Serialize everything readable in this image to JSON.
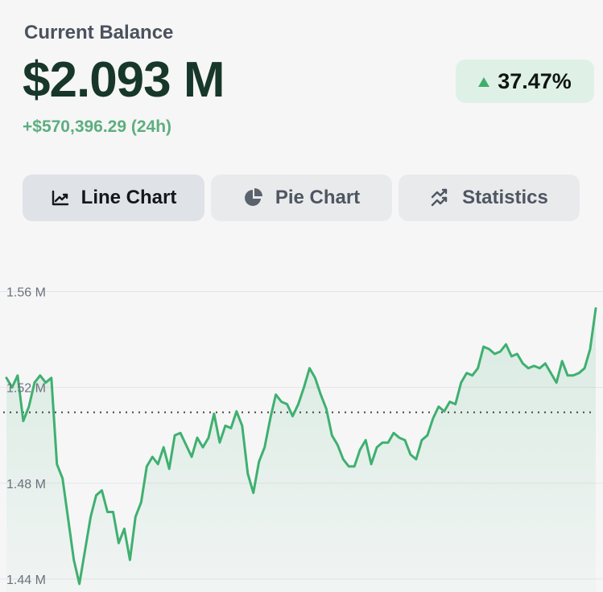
{
  "balance": {
    "label": "Current Balance",
    "value": "$2.093 M",
    "change_24h": "+$570,396.29 (24h)"
  },
  "performance": {
    "percent": "37.47%",
    "direction": "up",
    "color": "#3fae6b"
  },
  "tabs": [
    {
      "label": "Line Chart",
      "icon": "line-chart-icon",
      "active": true
    },
    {
      "label": "Pie Chart",
      "icon": "pie-chart-icon",
      "active": false
    },
    {
      "label": "Statistics",
      "icon": "statistics-icon",
      "active": false
    }
  ],
  "colors": {
    "accent_green": "#3fae6b",
    "line": "#3fb070",
    "balance_text": "#17372a",
    "change_text": "#5dae7f"
  },
  "chart_data": {
    "type": "area",
    "y_axis": {
      "ticks": [
        1.56,
        1.52,
        1.48,
        1.44
      ],
      "tick_labels": [
        "1.56 M",
        "1.52 M",
        "1.48 M",
        "1.44 M"
      ],
      "ylim": [
        1.4346,
        1.581
      ]
    },
    "reference_line": 1.5096,
    "grid": true,
    "series": [
      {
        "values": [
          1.524,
          1.52,
          1.525,
          1.506,
          1.512,
          1.522,
          1.525,
          1.522,
          1.524,
          1.488,
          1.482,
          1.465,
          1.448,
          1.438,
          1.452,
          1.466,
          1.475,
          1.477,
          1.468,
          1.468,
          1.455,
          1.461,
          1.448,
          1.466,
          1.472,
          1.487,
          1.491,
          1.488,
          1.495,
          1.486,
          1.5,
          1.501,
          1.496,
          1.491,
          1.499,
          1.495,
          1.499,
          1.509,
          1.497,
          1.504,
          1.503,
          1.51,
          1.504,
          1.484,
          1.476,
          1.489,
          1.495,
          1.507,
          1.517,
          1.514,
          1.513,
          1.508,
          1.513,
          1.52,
          1.528,
          1.524,
          1.517,
          1.511,
          1.5,
          1.496,
          1.49,
          1.487,
          1.487,
          1.494,
          1.498,
          1.488,
          1.495,
          1.497,
          1.497,
          1.501,
          1.499,
          1.498,
          1.492,
          1.49,
          1.498,
          1.5,
          1.507,
          1.512,
          1.51,
          1.514,
          1.513,
          1.522,
          1.526,
          1.525,
          1.528,
          1.537,
          1.536,
          1.534,
          1.535,
          1.538,
          1.533,
          1.534,
          1.53,
          1.528,
          1.529,
          1.528,
          1.53,
          1.526,
          1.522,
          1.531,
          1.525,
          1.525,
          1.526,
          1.528,
          1.536,
          1.553
        ],
        "color": "#3fb070"
      }
    ]
  }
}
